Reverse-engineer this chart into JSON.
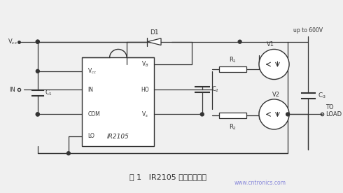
{
  "bg_color": "#f0f0f0",
  "line_color": "#333333",
  "box_color": "#ffffff",
  "title": "图 1   IR2105 的非隔离驱动",
  "watermark": "www.cntronics.com",
  "labels": {
    "vcc": "V$_{cc}$",
    "in": "IN",
    "d1": "D1",
    "vcc_pin": "V$_{cc}$",
    "vb_pin": "V$_{B}$",
    "in_pin": "IN",
    "ho_pin": "HO",
    "com_pin": "COM",
    "vs_pin": "V$_{s}$",
    "lo_pin": "LO",
    "ir2105": "IR2105",
    "c1": "C$_{1}$",
    "c2": "C$_{2}$",
    "c3": "C$_{3}$",
    "r1": "R$_{1}$",
    "r2": "R$_{2}$",
    "v1": "V1",
    "v2": "V2",
    "up600": "up to 600V",
    "toload": "TO\nLOAD"
  }
}
